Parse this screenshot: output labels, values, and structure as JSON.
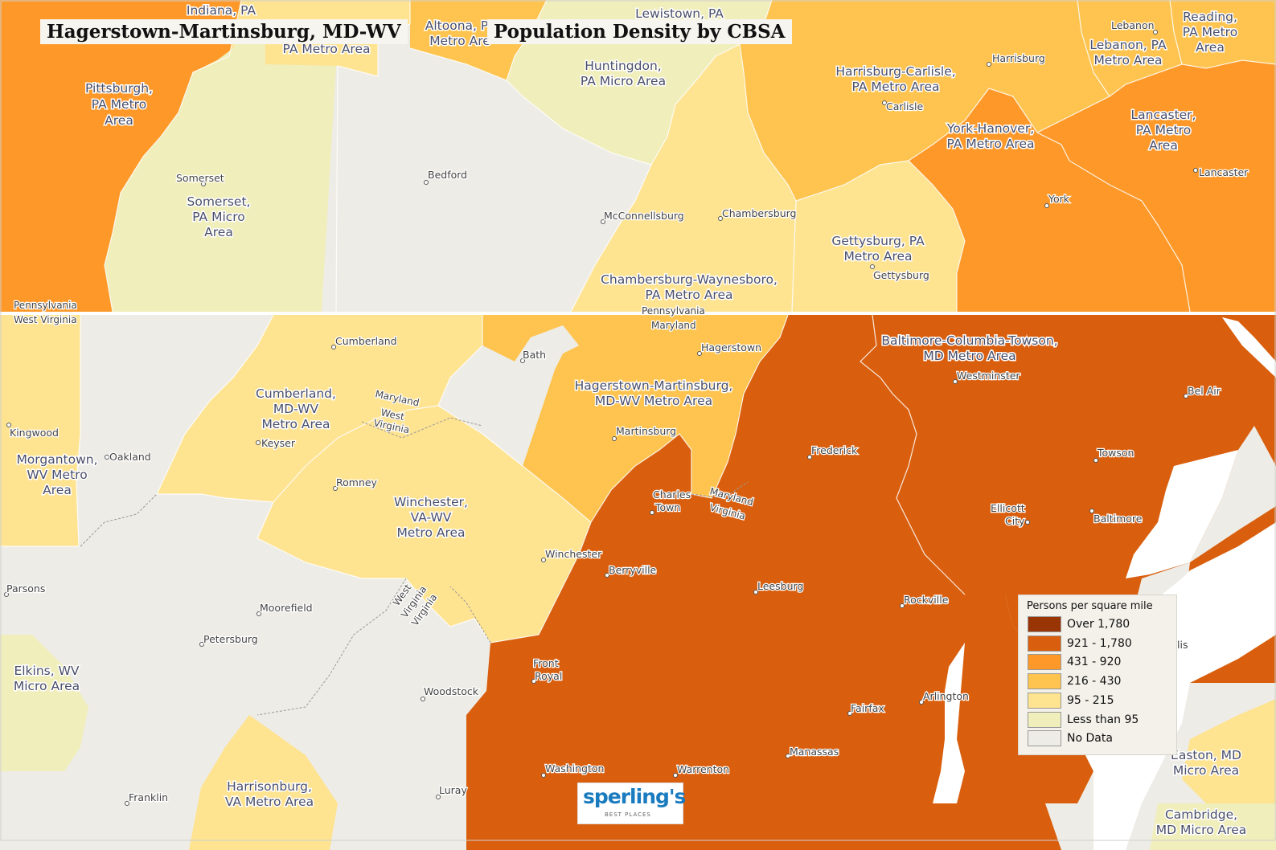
{
  "title_left": "Hagerstown-Martinsburg, MD-WV",
  "title_right": "Population Density by CBSA",
  "colors": {
    "over_1780": "#993404",
    "d921_1780": "#d95f0e",
    "d431_920": "#fe9929",
    "d216_430": "#fec44f",
    "d95_215": "#fee391",
    "less_95": "#f0eebb",
    "no_data": "#eeece6",
    "water": "#ffffff",
    "city_text": "#444444",
    "area_text": "#4a4f6a"
  },
  "legend": {
    "title": "Persons per square mile",
    "items": [
      {
        "label": "Over 1,780",
        "color": "#993404"
      },
      {
        "label": "921 - 1,780",
        "color": "#d95f0e"
      },
      {
        "label": "431 - 920",
        "color": "#fe9929"
      },
      {
        "label": "216 - 430",
        "color": "#fec44f"
      },
      {
        "label": "95 - 215",
        "color": "#fee391"
      },
      {
        "label": "Less than 95",
        "color": "#f0eebb"
      },
      {
        "label": "No Data",
        "color": "#eeece6"
      }
    ]
  },
  "area_labels": {
    "indiana": "Indiana, PA",
    "altoona_1": "Altoona, P",
    "altoona_2": "Metro Are",
    "pa_metro_area_top": "PA Metro Area",
    "lewistown": "Lewistown, PA",
    "pittsburgh_1": "Pittsburgh,",
    "pittsburgh_2": "PA Metro",
    "pittsburgh_3": "Area",
    "huntingdon_1": "Huntingdon,",
    "huntingdon_2": "PA Micro Area",
    "somerset_1": "Somerset,",
    "somerset_2": "PA Micro",
    "somerset_3": "Area",
    "harrisburg_1": "Harrisburg-Carlisle,",
    "harrisburg_2": "PA Metro Area",
    "lebanon_1": "Lebanon, PA",
    "lebanon_2": "Metro Area",
    "reading_1": "Reading,",
    "reading_2": "PA Metro",
    "reading_3": "Area",
    "york_1": "York-Hanover,",
    "york_2": "PA Metro Area",
    "lancaster_1": "Lancaster,",
    "lancaster_2": "PA Metro",
    "lancaster_3": "Area",
    "gettysburg_1": "Gettysburg, PA",
    "gettysburg_2": "Metro Area",
    "chambersburg_1": "Chambersburg-Waynesboro,",
    "chambersburg_2": "PA Metro Area",
    "hagerstown_1": "Hagerstown-Martinsburg,",
    "hagerstown_2": "MD-WV Metro Area",
    "baltimore_1": "Baltimore-Columbia-Towson,",
    "baltimore_2": "MD Metro Area",
    "cumberland_1": "Cumberland,",
    "cumberland_2": "MD-WV",
    "cumberland_3": "Metro Area",
    "morgantown_1": "Morgantown,",
    "morgantown_2": "WV Metro",
    "morgantown_3": "Area",
    "winchester_1": "Winchester,",
    "winchester_2": "VA-WV",
    "winchester_3": "Metro Area",
    "elkins_1": "Elkins, WV",
    "elkins_2": "Micro Area",
    "harrisonburg_1": "Harrisonburg,",
    "harrisonburg_2": "VA Metro Area",
    "easton_1": "Easton, MD",
    "easton_2": "Micro Area",
    "cambridge_1": "Cambridge,",
    "cambridge_2": "MD Micro Area"
  },
  "city_labels": {
    "lebanon": "Lebanon",
    "harrisburg": "Harrisburg",
    "carlisle": "Carlisle",
    "lancaster": "Lancaster",
    "york": "York",
    "somerset": "Somerset",
    "bedford": "Bedford",
    "mcconnellsburg": "McConnellsburg",
    "chambersburg": "Chambersburg",
    "gettysburg": "Gettysburg",
    "cumberland": "Cumberland",
    "bath": "Bath",
    "hagerstown": "Hagerstown",
    "westminster": "Westminster",
    "bel_air": "Bel Air",
    "kingwood": "Kingwood",
    "oakland": "Oakland",
    "keyser": "Keyser",
    "martinsburg": "Martinsburg",
    "frederick": "Frederick",
    "towson": "Towson",
    "romney": "Romney",
    "charles_1": "Charles",
    "charles_2": "Town",
    "ellicott_1": "Ellicott",
    "ellicott_2": "City",
    "baltimore": "Baltimore",
    "winchester": "Winchester",
    "berryville": "Berryville",
    "leesburg": "Leesburg",
    "rockville": "Rockville",
    "parsons": "Parsons",
    "moorefield": "Moorefield",
    "petersburg": "Petersburg",
    "front_1": "Front",
    "front_2": "Royal",
    "woodstock": "Woodstock",
    "fairfax": "Fairfax",
    "arlington": "Arlington",
    "manassas": "Manassas",
    "washington": "Washington",
    "warrenton": "Warrenton",
    "franklin": "Franklin",
    "luray": "Luray",
    "annapolis_partial": "lis"
  },
  "state_labels": {
    "pennsylvania_w": "Pennsylvania",
    "west_virginia_w": "West Virginia",
    "pennsylvania_c": "Pennsylvania",
    "maryland_c": "Maryland",
    "maryland_1": "Maryland",
    "west_virginia_1a": "West",
    "west_virginia_1b": "Virginia",
    "maryland_2": "Maryland",
    "virginia_2": "Virginia",
    "west_virginia_3a": "West",
    "west_virginia_3b": "Virginia",
    "virginia_3": "Virginia"
  },
  "logo": {
    "name": "sperling's",
    "sub": "BEST PLACES"
  }
}
